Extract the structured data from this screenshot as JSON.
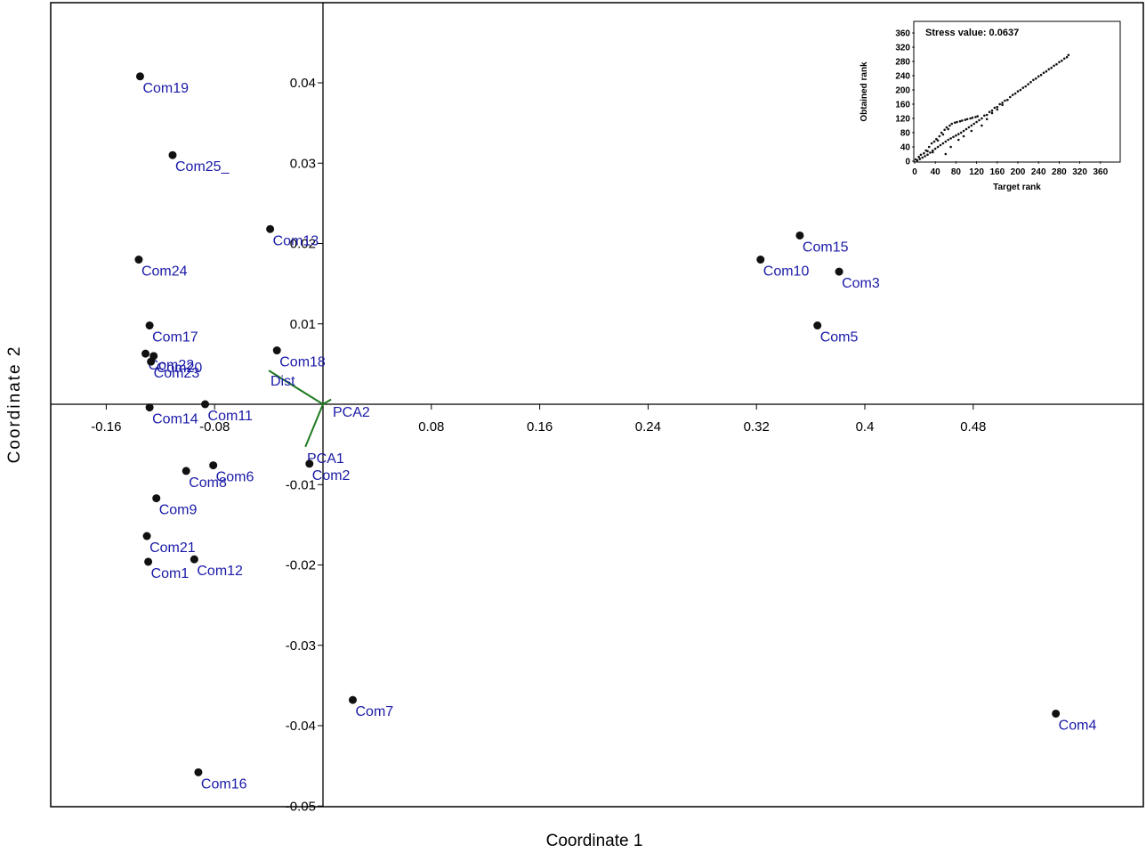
{
  "chart_data": [
    {
      "type": "scatter",
      "title": "",
      "xlabel": "Coordinate 1",
      "ylabel": "Coordinate 2",
      "xlim": [
        -0.195,
        0.6
      ],
      "ylim": [
        -0.05,
        0.05
      ],
      "xticks": [
        -0.16,
        -0.08,
        0.08,
        0.16,
        0.24,
        0.32,
        0.4,
        0.48
      ],
      "xtick_labels": [
        "-0.16",
        "-0.08",
        "0.08",
        "0.16",
        "0.24",
        "0.32",
        "0.4",
        "0.48"
      ],
      "yticks": [
        0.04,
        0.03,
        0.02,
        0.01,
        -0.01,
        -0.02,
        -0.03,
        -0.04,
        -0.05
      ],
      "ytick_labels": [
        "0.04",
        "0.03",
        "0.02",
        "0.01",
        "-0.01",
        "-0.02",
        "-0.03",
        "-0.04",
        "-0.05"
      ],
      "grid": false,
      "points": [
        {
          "label": "Com19",
          "x": -0.135,
          "y": 0.0408
        },
        {
          "label": "Com25_",
          "x": -0.111,
          "y": 0.031
        },
        {
          "label": "Com13",
          "x": -0.039,
          "y": 0.0218
        },
        {
          "label": "Com24",
          "x": -0.136,
          "y": 0.018
        },
        {
          "label": "Com17",
          "x": -0.128,
          "y": 0.0098
        },
        {
          "label": "Com22",
          "x": -0.131,
          "y": 0.0063
        },
        {
          "label": "Com20",
          "x": -0.125,
          "y": 0.006
        },
        {
          "label": "Com23",
          "x": -0.127,
          "y": 0.0053
        },
        {
          "label": "Com18",
          "x": -0.034,
          "y": 0.0067
        },
        {
          "label": "Com14",
          "x": -0.128,
          "y": -0.0004
        },
        {
          "label": "Com11",
          "x": -0.087,
          "y": 0.0
        },
        {
          "label": "Com8",
          "x": -0.101,
          "y": -0.0083
        },
        {
          "label": "Com6",
          "x": -0.081,
          "y": -0.0076
        },
        {
          "label": "Com9",
          "x": -0.123,
          "y": -0.0117
        },
        {
          "label": "Com2",
          "x": -0.01,
          "y": -0.0074
        },
        {
          "label": "Com21",
          "x": -0.13,
          "y": -0.0164
        },
        {
          "label": "Com1",
          "x": -0.129,
          "y": -0.0196
        },
        {
          "label": "Com12",
          "x": -0.095,
          "y": -0.0193
        },
        {
          "label": "Com15",
          "x": 0.352,
          "y": 0.021
        },
        {
          "label": "Com10",
          "x": 0.323,
          "y": 0.018
        },
        {
          "label": "Com3",
          "x": 0.381,
          "y": 0.0165
        },
        {
          "label": "Com5",
          "x": 0.365,
          "y": 0.0098
        },
        {
          "label": "Com7",
          "x": 0.022,
          "y": -0.0368
        },
        {
          "label": "Com4",
          "x": 0.541,
          "y": -0.0385
        },
        {
          "label": "Com16",
          "x": -0.092,
          "y": -0.0458
        }
      ],
      "vectors": [
        {
          "label": "Dist",
          "x": -0.04,
          "y": 0.0042
        },
        {
          "label": "PCA2",
          "x": 0.006,
          "y": 0.0006
        },
        {
          "label": "PCA1",
          "x": -0.013,
          "y": -0.0053
        }
      ]
    },
    {
      "type": "scatter",
      "title": "Stress value: 0.0637",
      "xlabel": "Target rank",
      "ylabel": "Obtained rank",
      "xlim": [
        0,
        380
      ],
      "ylim": [
        0,
        380
      ],
      "xticks": [
        0,
        40,
        80,
        120,
        160,
        200,
        240,
        280,
        320,
        360
      ],
      "yticks": [
        0,
        40,
        80,
        120,
        160,
        200,
        240,
        280,
        320,
        360
      ],
      "xtick_labels": [
        "0",
        "40",
        "80",
        "120",
        "160",
        "200",
        "240",
        "280",
        "320",
        "360"
      ],
      "ytick_labels": [
        "0",
        "40",
        "80",
        "120",
        "160",
        "200",
        "240",
        "280",
        "320",
        "360"
      ],
      "points": [
        [
          2,
          5
        ],
        [
          5,
          2
        ],
        [
          8,
          12
        ],
        [
          10,
          6
        ],
        [
          12,
          18
        ],
        [
          15,
          10
        ],
        [
          18,
          22
        ],
        [
          20,
          14
        ],
        [
          22,
          30
        ],
        [
          25,
          18
        ],
        [
          28,
          40
        ],
        [
          30,
          24
        ],
        [
          33,
          50
        ],
        [
          35,
          30
        ],
        [
          38,
          55
        ],
        [
          40,
          35
        ],
        [
          42,
          62
        ],
        [
          45,
          40
        ],
        [
          48,
          70
        ],
        [
          50,
          45
        ],
        [
          52,
          80
        ],
        [
          55,
          50
        ],
        [
          58,
          88
        ],
        [
          60,
          55
        ],
        [
          62,
          95
        ],
        [
          65,
          60
        ],
        [
          68,
          100
        ],
        [
          70,
          64
        ],
        [
          72,
          105
        ],
        [
          75,
          68
        ],
        [
          78,
          108
        ],
        [
          80,
          72
        ],
        [
          82,
          110
        ],
        [
          85,
          76
        ],
        [
          88,
          112
        ],
        [
          90,
          80
        ],
        [
          92,
          114
        ],
        [
          95,
          85
        ],
        [
          98,
          116
        ],
        [
          100,
          90
        ],
        [
          102,
          118
        ],
        [
          105,
          95
        ],
        [
          108,
          120
        ],
        [
          110,
          100
        ],
        [
          112,
          122
        ],
        [
          115,
          105
        ],
        [
          118,
          124
        ],
        [
          120,
          110
        ],
        [
          122,
          126
        ],
        [
          125,
          115
        ],
        [
          130,
          120
        ],
        [
          135,
          128
        ],
        [
          140,
          130
        ],
        [
          145,
          138
        ],
        [
          150,
          142
        ],
        [
          155,
          150
        ],
        [
          160,
          152
        ],
        [
          165,
          160
        ],
        [
          170,
          164
        ],
        [
          175,
          170
        ],
        [
          180,
          172
        ],
        [
          185,
          180
        ],
        [
          190,
          186
        ],
        [
          195,
          190
        ],
        [
          200,
          196
        ],
        [
          205,
          200
        ],
        [
          210,
          206
        ],
        [
          215,
          210
        ],
        [
          220,
          216
        ],
        [
          225,
          222
        ],
        [
          230,
          228
        ],
        [
          235,
          232
        ],
        [
          240,
          238
        ],
        [
          245,
          242
        ],
        [
          250,
          248
        ],
        [
          255,
          252
        ],
        [
          260,
          258
        ],
        [
          265,
          262
        ],
        [
          270,
          268
        ],
        [
          275,
          272
        ],
        [
          280,
          278
        ],
        [
          285,
          282
        ],
        [
          290,
          288
        ],
        [
          295,
          292
        ],
        [
          298,
          298
        ],
        [
          60,
          20
        ],
        [
          70,
          40
        ],
        [
          85,
          60
        ],
        [
          95,
          70
        ],
        [
          110,
          85
        ],
        [
          45,
          58
        ],
        [
          55,
          75
        ],
        [
          65,
          90
        ],
        [
          35,
          25
        ],
        [
          25,
          28
        ],
        [
          130,
          100
        ],
        [
          140,
          118
        ],
        [
          150,
          135
        ],
        [
          160,
          145
        ],
        [
          170,
          158
        ]
      ]
    }
  ]
}
